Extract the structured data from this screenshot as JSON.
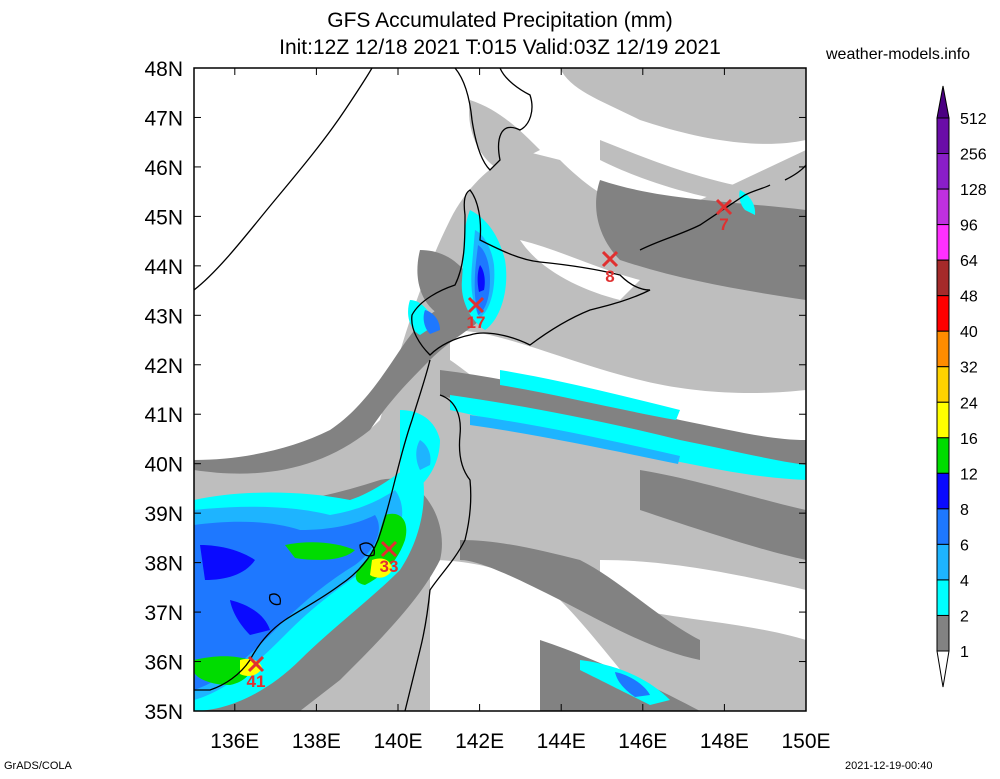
{
  "header": {
    "title_line1": "GFS Accumulated Precipitation (mm)",
    "title_line2": "Init:12Z 12/18 2021 T:015 Valid:03Z 12/19 2021",
    "site": "weather-models.info"
  },
  "footer": {
    "left": "GrADS/COLA",
    "right": "2021-12-19-00:40"
  },
  "axes": {
    "lat_labels": [
      "48N",
      "47N",
      "46N",
      "45N",
      "44N",
      "43N",
      "42N",
      "41N",
      "40N",
      "39N",
      "38N",
      "37N",
      "36N",
      "35N"
    ],
    "lon_labels": [
      "136E",
      "138E",
      "140E",
      "142E",
      "144E",
      "146E",
      "148E",
      "150E"
    ]
  },
  "colorbar": {
    "labels": [
      "512",
      "256",
      "128",
      "96",
      "64",
      "48",
      "40",
      "32",
      "24",
      "16",
      "12",
      "8",
      "6",
      "4",
      "2",
      "1"
    ],
    "colors": [
      "#6a0ca8",
      "#8a1ec8",
      "#c030e0",
      "#ff30ff",
      "#a52a2a",
      "#ff0000",
      "#ff8c00",
      "#ffd200",
      "#ffff00",
      "#00dc00",
      "#0a0aff",
      "#1e78ff",
      "#1eb4ff",
      "#00ffff",
      "#828282",
      "#bebebe"
    ]
  },
  "markers": [
    {
      "value": "41"
    },
    {
      "value": "33"
    },
    {
      "value": "17"
    },
    {
      "value": "8"
    },
    {
      "value": "7"
    }
  ]
}
